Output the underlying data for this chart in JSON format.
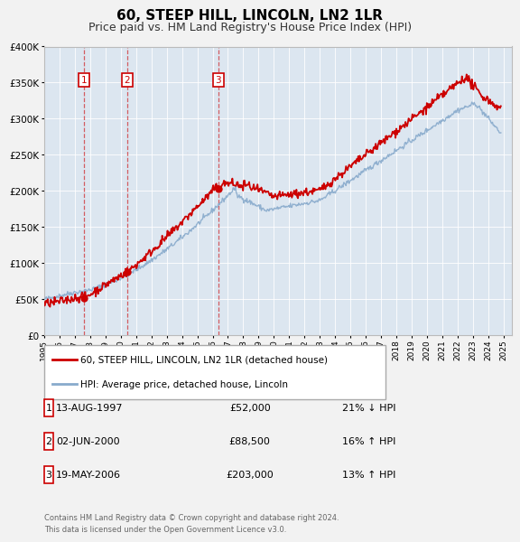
{
  "title": "60, STEEP HILL, LINCOLN, LN2 1LR",
  "subtitle": "Price paid vs. HM Land Registry's House Price Index (HPI)",
  "bg_color": "#f2f2f2",
  "plot_bg_color": "#dce6f0",
  "grid_color": "#ffffff",
  "red_color": "#cc0000",
  "blue_color": "#88aacc",
  "legend_label_red": "60, STEEP HILL, LINCOLN, LN2 1LR (detached house)",
  "legend_label_blue": "HPI: Average price, detached house, Lincoln",
  "transactions": [
    {
      "num": 1,
      "date": "13-AUG-1997",
      "price": 52000,
      "year": 1997.62,
      "hpi_diff": "21% ↓ HPI"
    },
    {
      "num": 2,
      "date": "02-JUN-2000",
      "price": 88500,
      "year": 2000.42,
      "hpi_diff": "16% ↑ HPI"
    },
    {
      "num": 3,
      "date": "19-MAY-2006",
      "price": 203000,
      "year": 2006.38,
      "hpi_diff": "13% ↑ HPI"
    }
  ],
  "footer_line1": "Contains HM Land Registry data © Crown copyright and database right 2024.",
  "footer_line2": "This data is licensed under the Open Government Licence v3.0.",
  "xmin": 1995.0,
  "xmax": 2025.5,
  "ymin": 0,
  "ymax": 400000,
  "yticks": [
    0,
    50000,
    100000,
    150000,
    200000,
    250000,
    300000,
    350000,
    400000
  ],
  "ytick_labels": [
    "£0",
    "£50K",
    "£100K",
    "£150K",
    "£200K",
    "£250K",
    "£300K",
    "£350K",
    "£400K"
  ]
}
